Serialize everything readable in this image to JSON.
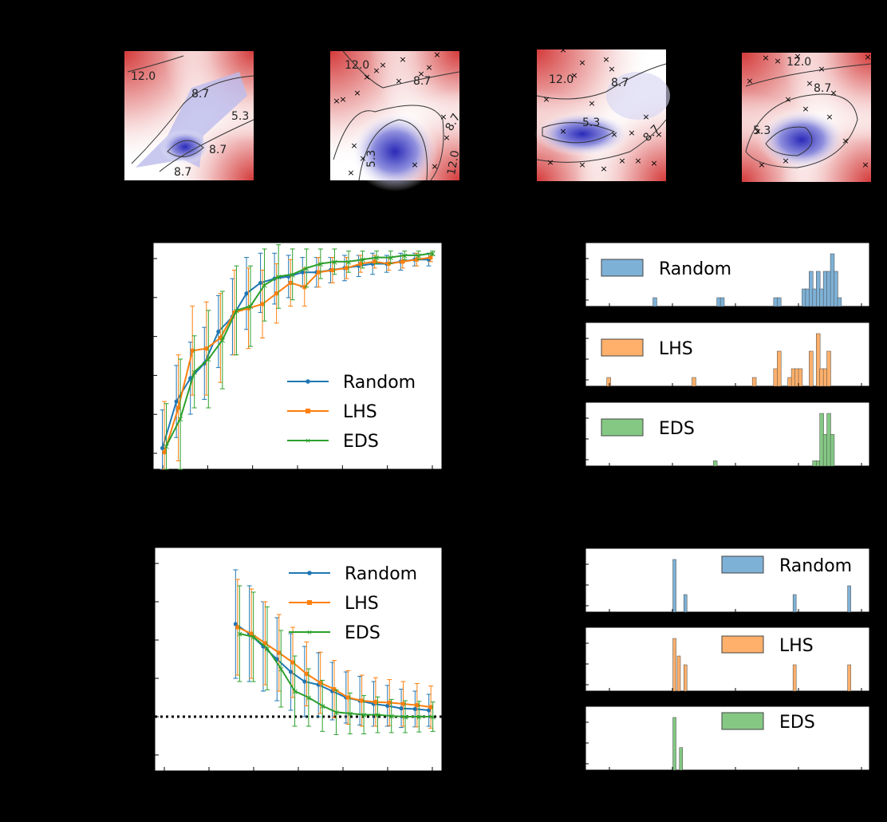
{
  "colors": {
    "random": "#1f77b4",
    "lhs": "#ff7f0e",
    "eds": "#2ca02c",
    "random_hist": "#7eb1d6",
    "lhs_hist": "#ffb06b",
    "eds_hist": "#84c884",
    "contour_high": "#d43a3a",
    "contour_low": "#3a3ac0"
  },
  "heatmaps": [
    {
      "levels": [
        "12.0",
        "8.7",
        "5.3",
        "8.7",
        "8.7"
      ]
    },
    {
      "levels": [
        "12.0",
        "8.7",
        "5.3",
        "8.7",
        "12.0"
      ]
    },
    {
      "levels": [
        "12.0",
        "8.7",
        "5.3",
        "8.7"
      ]
    },
    {
      "levels": [
        "12.0",
        "8.7",
        "5.3"
      ]
    }
  ],
  "chart_data": [
    {
      "type": "line",
      "x": [
        1,
        2,
        3,
        4,
        5,
        6,
        7,
        8,
        9,
        10,
        11,
        12,
        13,
        14,
        15,
        16,
        17,
        18,
        19,
        20
      ],
      "series": [
        {
          "name": "Random",
          "values": [
            0.05,
            0.27,
            0.38,
            0.45,
            0.6,
            0.67,
            0.78,
            0.83,
            0.85,
            0.86,
            0.88,
            0.88,
            0.89,
            0.9,
            0.91,
            0.92,
            0.92,
            0.93,
            0.94,
            0.94
          ],
          "err": [
            0.18,
            0.17,
            0.17,
            0.17,
            0.17,
            0.18,
            0.17,
            0.14,
            0.12,
            0.1,
            0.07,
            0.07,
            0.06,
            0.06,
            0.05,
            0.05,
            0.04,
            0.04,
            0.03,
            0.03
          ]
        },
        {
          "name": "LHS",
          "values": [
            0.03,
            0.24,
            0.51,
            0.52,
            0.57,
            0.69,
            0.71,
            0.73,
            0.78,
            0.83,
            0.81,
            0.88,
            0.89,
            0.9,
            0.92,
            0.93,
            0.92,
            0.93,
            0.94,
            0.95
          ],
          "err": [
            0.24,
            0.25,
            0.21,
            0.22,
            0.21,
            0.2,
            0.19,
            0.16,
            0.14,
            0.11,
            0.09,
            0.07,
            0.06,
            0.05,
            0.04,
            0.03,
            0.03,
            0.03,
            0.03,
            0.02
          ]
        },
        {
          "name": "EDS",
          "values": [
            0.06,
            0.19,
            0.41,
            0.47,
            0.56,
            0.7,
            0.72,
            0.82,
            0.86,
            0.87,
            0.9,
            0.92,
            0.93,
            0.93,
            0.94,
            0.95,
            0.95,
            0.96,
            0.96,
            0.97
          ],
          "err": [
            0.2,
            0.28,
            0.17,
            0.23,
            0.23,
            0.21,
            0.19,
            0.17,
            0.15,
            0.12,
            0.09,
            0.07,
            0.06,
            0.05,
            0.04,
            0.03,
            0.03,
            0.02,
            0.02,
            0.01
          ]
        }
      ],
      "legend": "lower-right",
      "ylim": [
        -0.05,
        1.02
      ],
      "xlim": [
        0.2,
        20.8
      ]
    },
    {
      "type": "line",
      "x": [
        6,
        7,
        8,
        9,
        10,
        11,
        12,
        13,
        14,
        15,
        16,
        17,
        18,
        19,
        20
      ],
      "series": [
        {
          "name": "Random",
          "values": [
            2.4,
            2.25,
            2.05,
            1.85,
            1.65,
            1.5,
            1.45,
            1.35,
            1.25,
            1.2,
            1.15,
            1.12,
            1.08,
            1.07,
            1.05
          ],
          "err": [
            0.85,
            0.75,
            0.7,
            0.65,
            0.6,
            0.55,
            0.5,
            0.45,
            0.4,
            0.38,
            0.35,
            0.32,
            0.3,
            0.28,
            0.25
          ]
        },
        {
          "name": "LHS",
          "values": [
            2.35,
            2.25,
            2.1,
            1.95,
            1.8,
            1.62,
            1.48,
            1.38,
            1.25,
            1.2,
            1.18,
            1.17,
            1.15,
            1.13,
            1.1
          ],
          "err": [
            0.75,
            0.7,
            0.65,
            0.6,
            0.55,
            0.5,
            0.48,
            0.45,
            0.42,
            0.4,
            0.38,
            0.36,
            0.35,
            0.34,
            0.33
          ]
        },
        {
          "name": "EDS",
          "values": [
            2.25,
            2.2,
            2.02,
            1.7,
            1.35,
            1.25,
            1.12,
            1.02,
            1.0,
            0.98,
            0.98,
            0.96,
            0.95,
            0.95,
            0.95
          ],
          "err": [
            0.75,
            0.7,
            0.65,
            0.6,
            0.55,
            0.45,
            0.4,
            0.35,
            0.32,
            0.3,
            0.28,
            0.26,
            0.25,
            0.24,
            0.23
          ]
        }
      ],
      "reference": 0.95,
      "legend": "upper-right",
      "ylim": [
        0.1,
        3.6
      ],
      "xlim": [
        0.0,
        20.8
      ]
    },
    {
      "type": "bar",
      "title": "Random",
      "bins": [
        [
          0.39,
          0.5
        ],
        [
          0.57,
          0.5
        ],
        [
          0.58,
          0.5
        ],
        [
          0.73,
          0.5
        ],
        [
          0.74,
          0.5
        ],
        [
          0.81,
          1
        ],
        [
          0.82,
          1
        ],
        [
          0.83,
          2
        ],
        [
          0.84,
          1
        ],
        [
          0.85,
          2
        ],
        [
          0.86,
          1
        ],
        [
          0.87,
          2
        ],
        [
          0.88,
          2
        ],
        [
          0.89,
          3
        ],
        [
          0.9,
          2
        ],
        [
          0.91,
          0.5
        ]
      ]
    },
    {
      "type": "bar",
      "title": "LHS",
      "bins": [
        [
          0.26,
          0.5
        ],
        [
          0.5,
          0.5
        ],
        [
          0.67,
          0.5
        ],
        [
          0.73,
          1
        ],
        [
          0.74,
          2
        ],
        [
          0.77,
          0.5
        ],
        [
          0.78,
          1
        ],
        [
          0.79,
          1
        ],
        [
          0.8,
          1
        ],
        [
          0.83,
          2
        ],
        [
          0.85,
          3
        ],
        [
          0.86,
          1
        ],
        [
          0.87,
          1
        ],
        [
          0.88,
          2
        ]
      ]
    },
    {
      "type": "bar",
      "title": "EDS",
      "bins": [
        [
          0.56,
          0.5
        ],
        [
          0.84,
          0.5
        ],
        [
          0.85,
          0.5
        ],
        [
          0.86,
          5
        ],
        [
          0.87,
          3
        ],
        [
          0.88,
          5
        ],
        [
          0.89,
          3
        ]
      ]
    },
    {
      "type": "bar",
      "title": "Random",
      "bins": [
        [
          0.95,
          6
        ],
        [
          1.0,
          2
        ],
        [
          1.5,
          2
        ],
        [
          1.75,
          3
        ]
      ]
    },
    {
      "type": "bar",
      "title": "LHS",
      "bins": [
        [
          0.95,
          6
        ],
        [
          0.97,
          4
        ],
        [
          1.0,
          3
        ],
        [
          1.5,
          3
        ],
        [
          1.75,
          3
        ]
      ]
    },
    {
      "type": "bar",
      "title": "EDS",
      "bins": [
        [
          0.95,
          7
        ],
        [
          0.98,
          3
        ]
      ]
    }
  ]
}
